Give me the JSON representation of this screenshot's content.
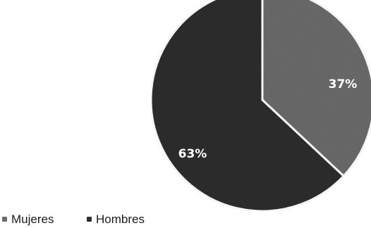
{
  "chart_data": {
    "type": "pie",
    "categories": [
      "Mujeres",
      "Hombres"
    ],
    "values": [
      37,
      63
    ],
    "labels": [
      "37%",
      "63%"
    ],
    "colors": [
      "#6b6b6b",
      "#2e2e2e"
    ],
    "legend": {
      "placement": "bottom-left",
      "entries": [
        "Mujeres",
        "Hombres"
      ]
    },
    "start_angle_deg": 0,
    "direction": "clockwise"
  }
}
